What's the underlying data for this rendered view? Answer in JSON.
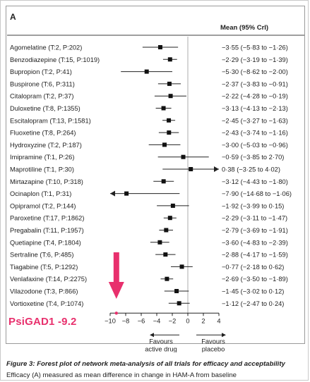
{
  "panel_letter": "A",
  "column_header": "Mean (95% CrI)",
  "caption": {
    "figure_label": "Figure 3:",
    "title": "Forest plot of network meta-analysis of all trials for efficacy and acceptability",
    "subtitle": "Efficacy (A) measured as mean difference in change in HAM-A from baseline"
  },
  "annotation": {
    "label": "PsiGAD1 -9.2",
    "value": -9.2,
    "color": "#e8306d"
  },
  "chart_data": {
    "type": "forest",
    "x_ticks": [
      -10,
      -8,
      -6,
      -4,
      -2,
      0,
      2,
      4
    ],
    "xlim": [
      -10,
      4
    ],
    "favours_left": [
      "Favours",
      "active drug"
    ],
    "favours_right": [
      "Favours",
      "placebo"
    ],
    "rows": [
      {
        "label": "Agomelatine (T:2, P:202)",
        "mean": -3.55,
        "lo": -5.83,
        "hi": -1.26,
        "text": "−3·55 (−5·83 to −1·26)"
      },
      {
        "label": "Benzodiazepine (T:15, P:1019)",
        "mean": -2.29,
        "lo": -3.19,
        "hi": -1.39,
        "text": "−2·29 (−3·19 to −1·39)"
      },
      {
        "label": "Bupropion (T:2, P:41)",
        "mean": -5.3,
        "lo": -8.62,
        "hi": -2.0,
        "text": "−5·30 (−8·62 to −2·00)"
      },
      {
        "label": "Buspirone (T:6, P:311)",
        "mean": -2.37,
        "lo": -3.83,
        "hi": -0.91,
        "text": "−2·37 (−3·83 to −0·91)"
      },
      {
        "label": "Citalopram (T:2, P:37)",
        "mean": -2.22,
        "lo": -4.28,
        "hi": -0.19,
        "text": "−2·22 (−4·28 to −0·19)"
      },
      {
        "label": "Duloxetine (T:8, P:1355)",
        "mean": -3.13,
        "lo": -4.13,
        "hi": -2.13,
        "text": "−3·13 (−4·13 to −2·13)"
      },
      {
        "label": "Escitalopram (T:13, P:1581)",
        "mean": -2.45,
        "lo": -3.27,
        "hi": -1.63,
        "text": "−2·45 (−3·27 to −1·63)"
      },
      {
        "label": "Fluoxetine (T:8, P:264)",
        "mean": -2.43,
        "lo": -3.74,
        "hi": -1.16,
        "text": "−2·43 (−3·74 to −1·16)"
      },
      {
        "label": "Hydroxyzine (T:2, P:187)",
        "mean": -3.0,
        "lo": -5.03,
        "hi": -0.96,
        "text": "−3·00 (−5·03 to −0·96)"
      },
      {
        "label": "Imipramine (T:1, P:26)",
        "mean": -0.59,
        "lo": -3.85,
        "hi": 2.7,
        "text": "−0·59 (−3·85 to 2·70)"
      },
      {
        "label": "Maprotiline (T:1, P:30)",
        "mean": 0.38,
        "lo": -3.25,
        "hi": 4.02,
        "text": "0·38 (−3·25 to 4·02)"
      },
      {
        "label": "Mirtazapine (T:10, P:318)",
        "mean": -3.12,
        "lo": -4.43,
        "hi": -1.8,
        "text": "−3·12 (−4·43 to −1·80)"
      },
      {
        "label": "Ocinaplon (T:1, P:31)",
        "mean": -7.9,
        "lo": -14.68,
        "hi": -1.06,
        "text": "−7·90 (−14·68 to −1·06)"
      },
      {
        "label": "Opipramol (T:2, P:144)",
        "mean": -1.92,
        "lo": -3.99,
        "hi": 0.15,
        "text": "−1·92 (−3·99 to 0·15)"
      },
      {
        "label": "Paroxetine (T:17, P:1862)",
        "mean": -2.29,
        "lo": -3.11,
        "hi": -1.47,
        "text": "−2·29 (−3·11 to −1·47)"
      },
      {
        "label": "Pregabalin (T:11, P:1957)",
        "mean": -2.79,
        "lo": -3.69,
        "hi": -1.91,
        "text": "−2·79 (−3·69 to −1·91)"
      },
      {
        "label": "Quetiapine (T:4, P:1804)",
        "mean": -3.6,
        "lo": -4.83,
        "hi": -2.39,
        "text": "−3·60 (−4·83 to −2·39)"
      },
      {
        "label": "Sertraline (T:6, P:485)",
        "mean": -2.88,
        "lo": -4.17,
        "hi": -1.59,
        "text": "−2·88 (−4·17 to −1·59)"
      },
      {
        "label": "Tiagabine (T:5, P:1292)",
        "mean": -0.77,
        "lo": -2.18,
        "hi": 0.62,
        "text": "−0·77 (−2·18 to 0·62)"
      },
      {
        "label": "Venlafaxine (T:14, P:2275)",
        "mean": -2.69,
        "lo": -3.5,
        "hi": -1.89,
        "text": "−2·69 (−3·50 to −1·89)"
      },
      {
        "label": "Vilazodone (T:3, P:866)",
        "mean": -1.45,
        "lo": -3.02,
        "hi": 0.12,
        "text": "−1·45 (−3·02 to 0·12)"
      },
      {
        "label": "Vortioxetine (T:4, P:1074)",
        "mean": -1.12,
        "lo": -2.47,
        "hi": 0.24,
        "text": "−1·12 (−2·47 to 0·24)"
      }
    ]
  }
}
